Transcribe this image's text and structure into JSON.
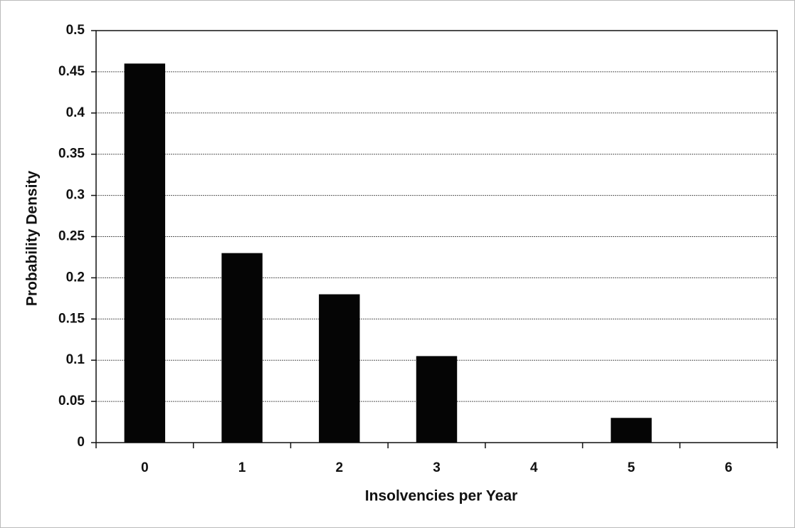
{
  "chart_data": {
    "type": "bar",
    "x_label": "Insolvencies per Year",
    "y_label": "Probability Density",
    "categories": [
      "0",
      "1",
      "2",
      "3",
      "4",
      "5",
      "6"
    ],
    "values": [
      0.46,
      0.23,
      0.18,
      0.105,
      0,
      0.03,
      0
    ],
    "color": "#050505",
    "ylim": [
      0,
      0.5
    ],
    "yticks": [
      0,
      0.05,
      0.1,
      0.15,
      0.2,
      0.25,
      0.3,
      0.35,
      0.4,
      0.45,
      0.5
    ],
    "grid": true
  }
}
